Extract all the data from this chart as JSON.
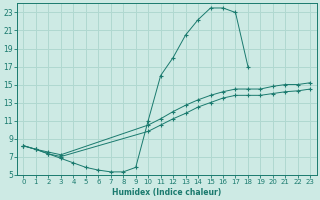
{
  "xlabel": "Humidex (Indice chaleur)",
  "xlim": [
    -0.5,
    23.5
  ],
  "ylim": [
    5,
    24
  ],
  "yticks": [
    5,
    7,
    9,
    11,
    13,
    15,
    17,
    19,
    21,
    23
  ],
  "xticks": [
    0,
    1,
    2,
    3,
    4,
    5,
    6,
    7,
    8,
    9,
    10,
    11,
    12,
    13,
    14,
    15,
    16,
    17,
    18,
    19,
    20,
    21,
    22,
    23
  ],
  "bg_color": "#cdeae4",
  "grid_color": "#b0d8d0",
  "line_color": "#1a7a6e",
  "arch_x": [
    0,
    1,
    2,
    3,
    4,
    5,
    6,
    7,
    8,
    9,
    10,
    11,
    12,
    13,
    14,
    15,
    16,
    17,
    18
  ],
  "arch_y": [
    8.2,
    7.8,
    7.3,
    6.8,
    6.3,
    5.8,
    5.5,
    5.3,
    5.3,
    5.8,
    11,
    16,
    18,
    20.5,
    22.2,
    23.5,
    23.5,
    23.0,
    17.0
  ],
  "line2_x": [
    0,
    1,
    2,
    3,
    10,
    11,
    12,
    13,
    14,
    15,
    16,
    17,
    18,
    19,
    20,
    21,
    22,
    23
  ],
  "line2_y": [
    8.2,
    7.8,
    7.5,
    7.2,
    10.5,
    11.2,
    12.0,
    12.7,
    13.3,
    13.8,
    14.2,
    14.5,
    14.5,
    14.5,
    14.8,
    15.0,
    15.0,
    15.2
  ],
  "line3_x": [
    0,
    1,
    2,
    3,
    10,
    11,
    12,
    13,
    14,
    15,
    16,
    17,
    18,
    19,
    20,
    21,
    22,
    23
  ],
  "line3_y": [
    8.2,
    7.8,
    7.3,
    7.0,
    9.8,
    10.5,
    11.2,
    11.8,
    12.5,
    13.0,
    13.5,
    13.8,
    13.8,
    13.8,
    14.0,
    14.2,
    14.3,
    14.5
  ]
}
